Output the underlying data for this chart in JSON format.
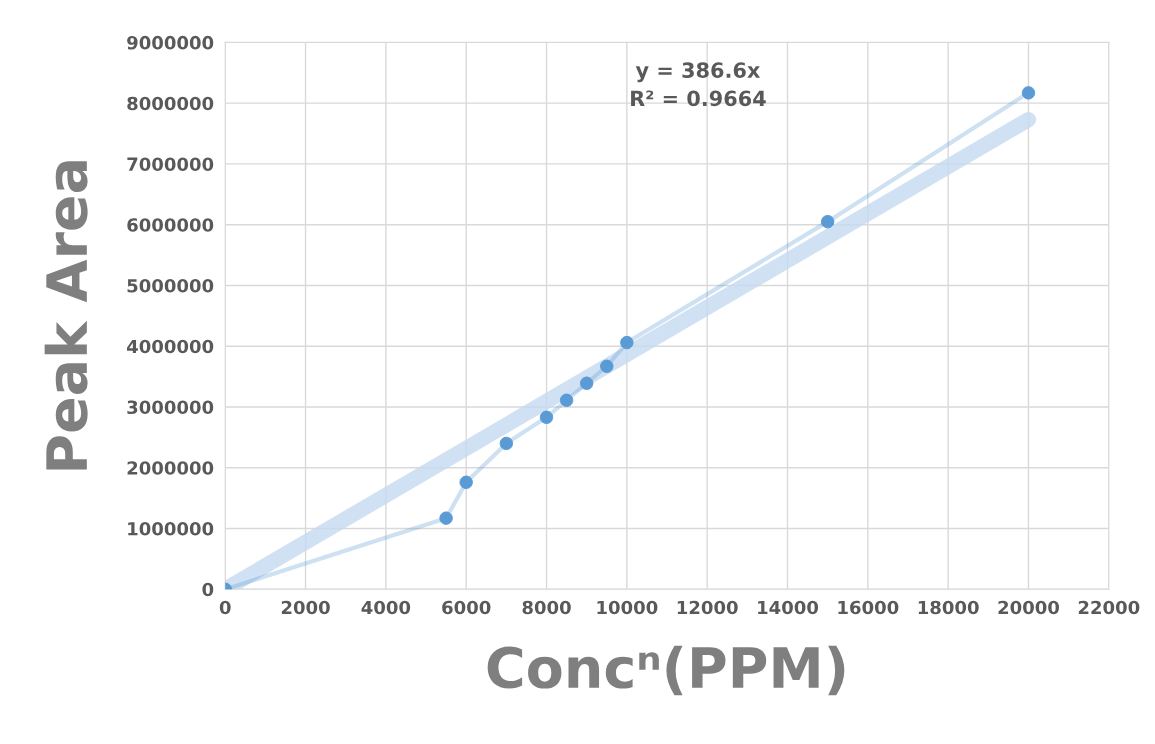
{
  "chart_data": {
    "type": "line",
    "xlabel": "Concⁿ(PPM)",
    "ylabel": "Peak Area",
    "annotations": [
      "y = 386.6x\nR² = 0.9664"
    ],
    "series": [
      {
        "type": "line",
        "color": "#c5d9f1",
        "x": [
          0,
          20000
        ],
        "values": [
          0,
          7730000
        ],
        "marker": "none"
      },
      {
        "color": "#5b9bd5",
        "marker": "circle",
        "x": [
          0,
          5500,
          6000,
          7000,
          8000,
          8500,
          9000,
          9500,
          10000,
          15000,
          20000
        ],
        "values": [
          0,
          1170000,
          1760000,
          2400000,
          2830000,
          3110000,
          3390000,
          3670000,
          4060000,
          6050000,
          8170000
        ]
      }
    ],
    "xlim": [
      0,
      22000
    ],
    "xticks": [
      0,
      2000,
      4000,
      6000,
      8000,
      10000,
      12000,
      14000,
      16000,
      18000,
      20000,
      22000
    ],
    "ylim": [
      0,
      9000000
    ],
    "yticks": [
      0,
      1000000,
      2000000,
      3000000,
      4000000,
      5000000,
      6000000,
      7000000,
      8000000,
      9000000
    ],
    "grid": true,
    "legend": false
  }
}
